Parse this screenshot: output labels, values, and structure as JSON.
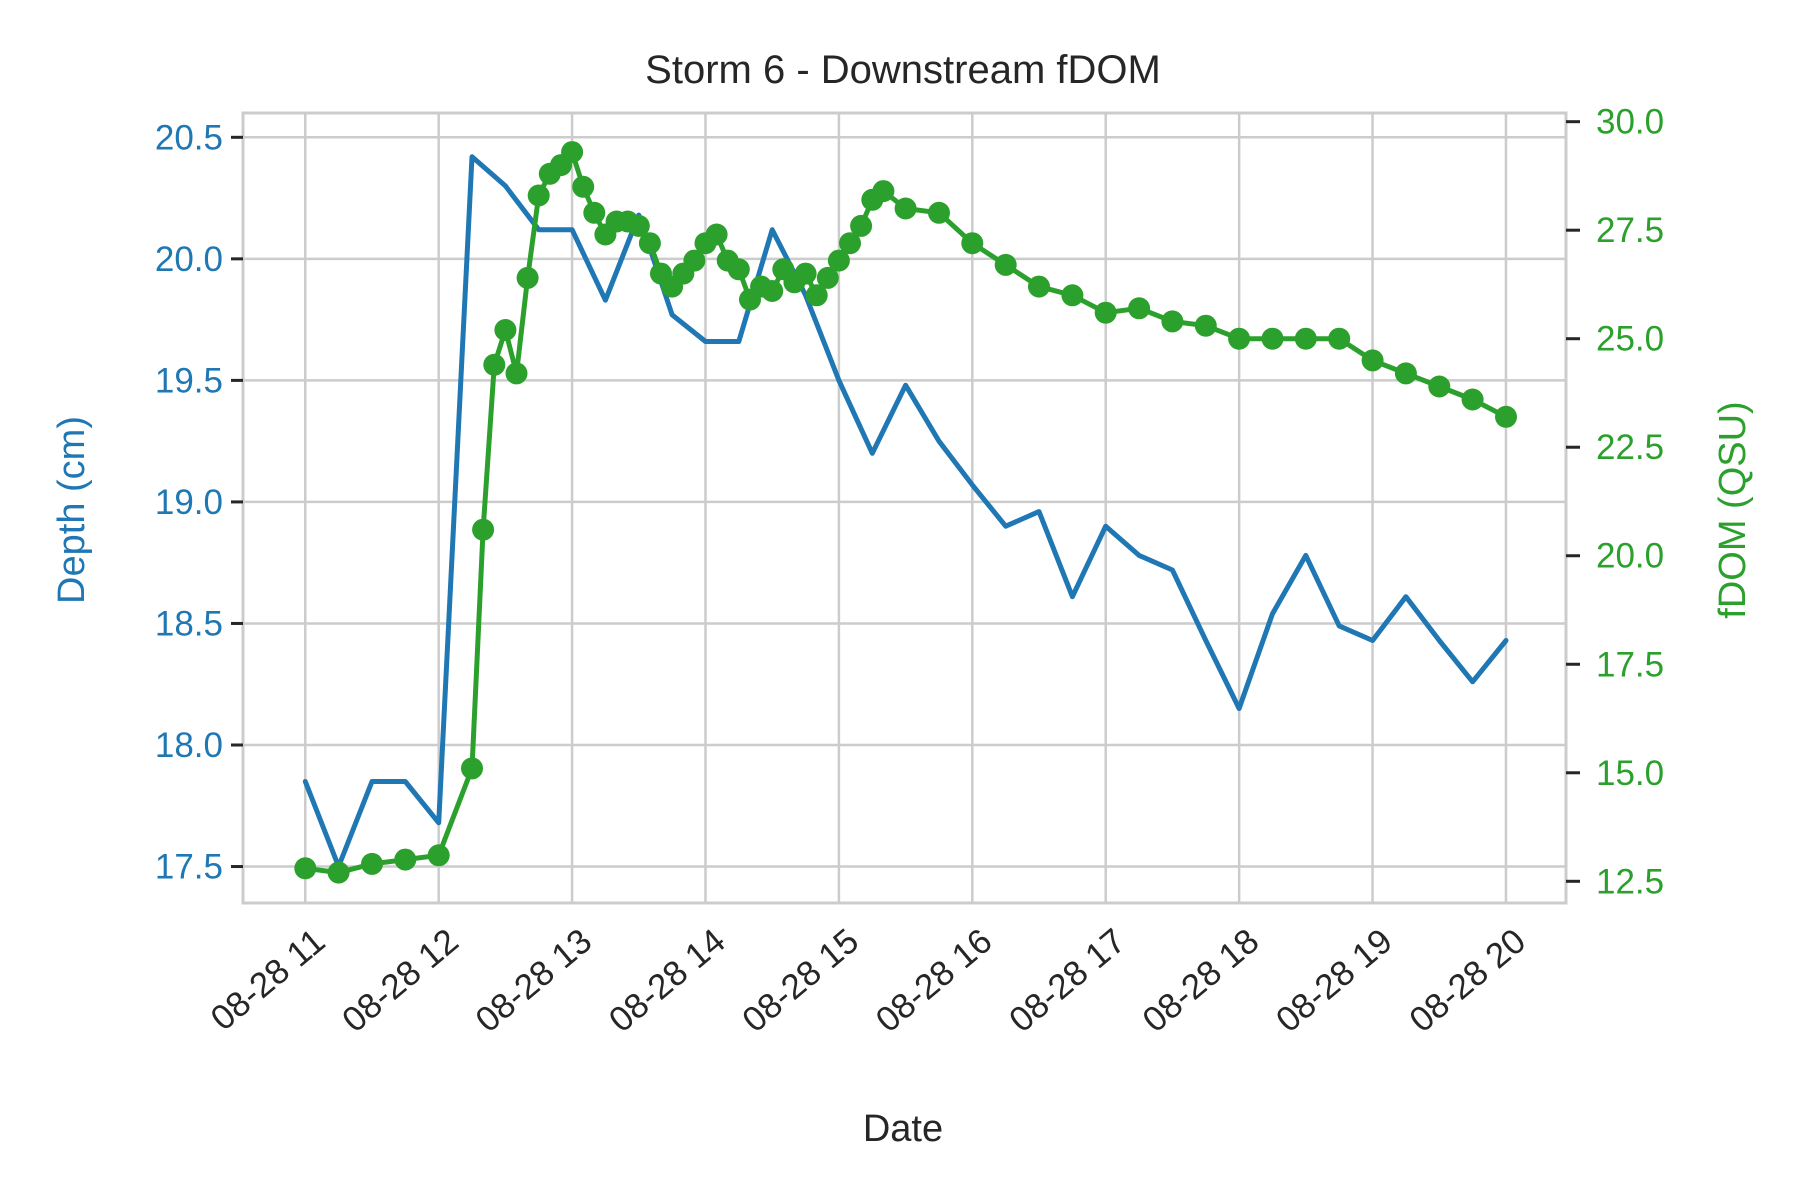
{
  "chart_data": {
    "type": "line",
    "title": "Storm 6 - Downstream fDOM",
    "xlabel": "Date",
    "ylabel_left": "Depth (cm)",
    "ylabel_right": "fDOM (QSU)",
    "x_ticks": [
      "08-28 11",
      "08-28 12",
      "08-28 13",
      "08-28 14",
      "08-28 15",
      "08-28 16",
      "08-28 17",
      "08-28 18",
      "08-28 19",
      "08-28 20"
    ],
    "xlim": [
      "2019-08-28 10:32",
      "2020-08-28 20:27"
    ],
    "ylim_left": [
      17.35,
      20.6
    ],
    "ylim_right": [
      12.0,
      30.2
    ],
    "yticks_left": [
      "17.5",
      "18.0",
      "18.5",
      "19.0",
      "19.5",
      "20.0",
      "20.5"
    ],
    "yticks_right": [
      "12.5",
      "15.0",
      "17.5",
      "20.0",
      "22.5",
      "25.0",
      "27.5",
      "30.0"
    ],
    "grid": true,
    "colors": {
      "depth": "#1f77b4",
      "fdom": "#2ca02c",
      "grid": "#cccccc",
      "text": "#262626"
    },
    "series": [
      {
        "axis": "left",
        "markers": false,
        "points": [
          [
            "08-28 11:00",
            17.85
          ],
          [
            "08-28 11:15",
            17.5
          ],
          [
            "08-28 11:30",
            17.85
          ],
          [
            "08-28 11:45",
            17.85
          ],
          [
            "08-28 12:00",
            17.68
          ],
          [
            "08-28 12:15",
            20.42
          ],
          [
            "08-28 12:30",
            20.3
          ],
          [
            "08-28 12:45",
            20.12
          ],
          [
            "08-28 13:00",
            20.12
          ],
          [
            "08-28 13:15",
            19.83
          ],
          [
            "08-28 13:30",
            20.18
          ],
          [
            "08-28 13:45",
            19.77
          ],
          [
            "08-28 14:00",
            19.66
          ],
          [
            "08-28 14:15",
            19.66
          ],
          [
            "08-28 14:30",
            20.12
          ],
          [
            "08-28 14:45",
            19.85
          ],
          [
            "08-28 15:00",
            19.5
          ],
          [
            "08-28 15:15",
            19.2
          ],
          [
            "08-28 15:30",
            19.48
          ],
          [
            "08-28 15:45",
            19.25
          ],
          [
            "08-28 16:00",
            19.07
          ],
          [
            "08-28 16:15",
            18.9
          ],
          [
            "08-28 16:30",
            18.96
          ],
          [
            "08-28 16:45",
            18.61
          ],
          [
            "08-28 17:00",
            18.9
          ],
          [
            "08-28 17:15",
            18.78
          ],
          [
            "08-28 17:30",
            18.72
          ],
          [
            "08-28 17:45",
            18.43
          ],
          [
            "08-28 18:00",
            18.15
          ],
          [
            "08-28 18:15",
            18.54
          ],
          [
            "08-28 18:30",
            18.78
          ],
          [
            "08-28 18:45",
            18.49
          ],
          [
            "08-28 19:00",
            18.43
          ],
          [
            "08-28 19:15",
            18.61
          ],
          [
            "08-28 19:30",
            18.43
          ],
          [
            "08-28 19:45",
            18.26
          ],
          [
            "08-28 20:00",
            18.43
          ]
        ]
      },
      {
        "axis": "right",
        "markers": true,
        "points": [
          [
            "08-28 11:00",
            12.8
          ],
          [
            "08-28 11:15",
            12.7
          ],
          [
            "08-28 11:30",
            12.9
          ],
          [
            "08-28 11:45",
            13.0
          ],
          [
            "08-28 12:00",
            13.1
          ],
          [
            "08-28 12:15",
            15.1
          ],
          [
            "08-28 12:20",
            20.6
          ],
          [
            "08-28 12:25",
            24.4
          ],
          [
            "08-28 12:30",
            25.2
          ],
          [
            "08-28 12:35",
            24.2
          ],
          [
            "08-28 12:40",
            26.4
          ],
          [
            "08-28 12:45",
            28.3
          ],
          [
            "08-28 12:50",
            28.8
          ],
          [
            "08-28 12:55",
            29.0
          ],
          [
            "08-28 13:00",
            29.3
          ],
          [
            "08-28 13:05",
            28.5
          ],
          [
            "08-28 13:10",
            27.9
          ],
          [
            "08-28 13:15",
            27.4
          ],
          [
            "08-28 13:20",
            27.7
          ],
          [
            "08-28 13:25",
            27.7
          ],
          [
            "08-28 13:30",
            27.6
          ],
          [
            "08-28 13:35",
            27.2
          ],
          [
            "08-28 13:40",
            26.5
          ],
          [
            "08-28 13:45",
            26.2
          ],
          [
            "08-28 13:50",
            26.5
          ],
          [
            "08-28 13:55",
            26.8
          ],
          [
            "08-28 14:00",
            27.2
          ],
          [
            "08-28 14:05",
            27.4
          ],
          [
            "08-28 14:10",
            26.8
          ],
          [
            "08-28 14:15",
            26.6
          ],
          [
            "08-28 14:20",
            25.9
          ],
          [
            "08-28 14:25",
            26.2
          ],
          [
            "08-28 14:30",
            26.1
          ],
          [
            "08-28 14:35",
            26.6
          ],
          [
            "08-28 14:40",
            26.3
          ],
          [
            "08-28 14:45",
            26.5
          ],
          [
            "08-28 14:50",
            26.0
          ],
          [
            "08-28 14:55",
            26.4
          ],
          [
            "08-28 15:00",
            26.8
          ],
          [
            "08-28 15:05",
            27.2
          ],
          [
            "08-28 15:10",
            27.6
          ],
          [
            "08-28 15:15",
            28.2
          ],
          [
            "08-28 15:20",
            28.4
          ],
          [
            "08-28 15:30",
            28.0
          ],
          [
            "08-28 15:45",
            27.9
          ],
          [
            "08-28 16:00",
            27.2
          ],
          [
            "08-28 16:15",
            26.7
          ],
          [
            "08-28 16:30",
            26.2
          ],
          [
            "08-28 16:45",
            26.0
          ],
          [
            "08-28 17:00",
            25.6
          ],
          [
            "08-28 17:15",
            25.7
          ],
          [
            "08-28 17:30",
            25.4
          ],
          [
            "08-28 17:45",
            25.3
          ],
          [
            "08-28 18:00",
            25.0
          ],
          [
            "08-28 18:15",
            25.0
          ],
          [
            "08-28 18:30",
            25.0
          ],
          [
            "08-28 18:45",
            25.0
          ],
          [
            "08-28 19:00",
            24.5
          ],
          [
            "08-28 19:15",
            24.2
          ],
          [
            "08-28 19:30",
            23.9
          ],
          [
            "08-28 19:45",
            23.6
          ],
          [
            "08-28 20:00",
            23.2
          ]
        ]
      }
    ]
  }
}
